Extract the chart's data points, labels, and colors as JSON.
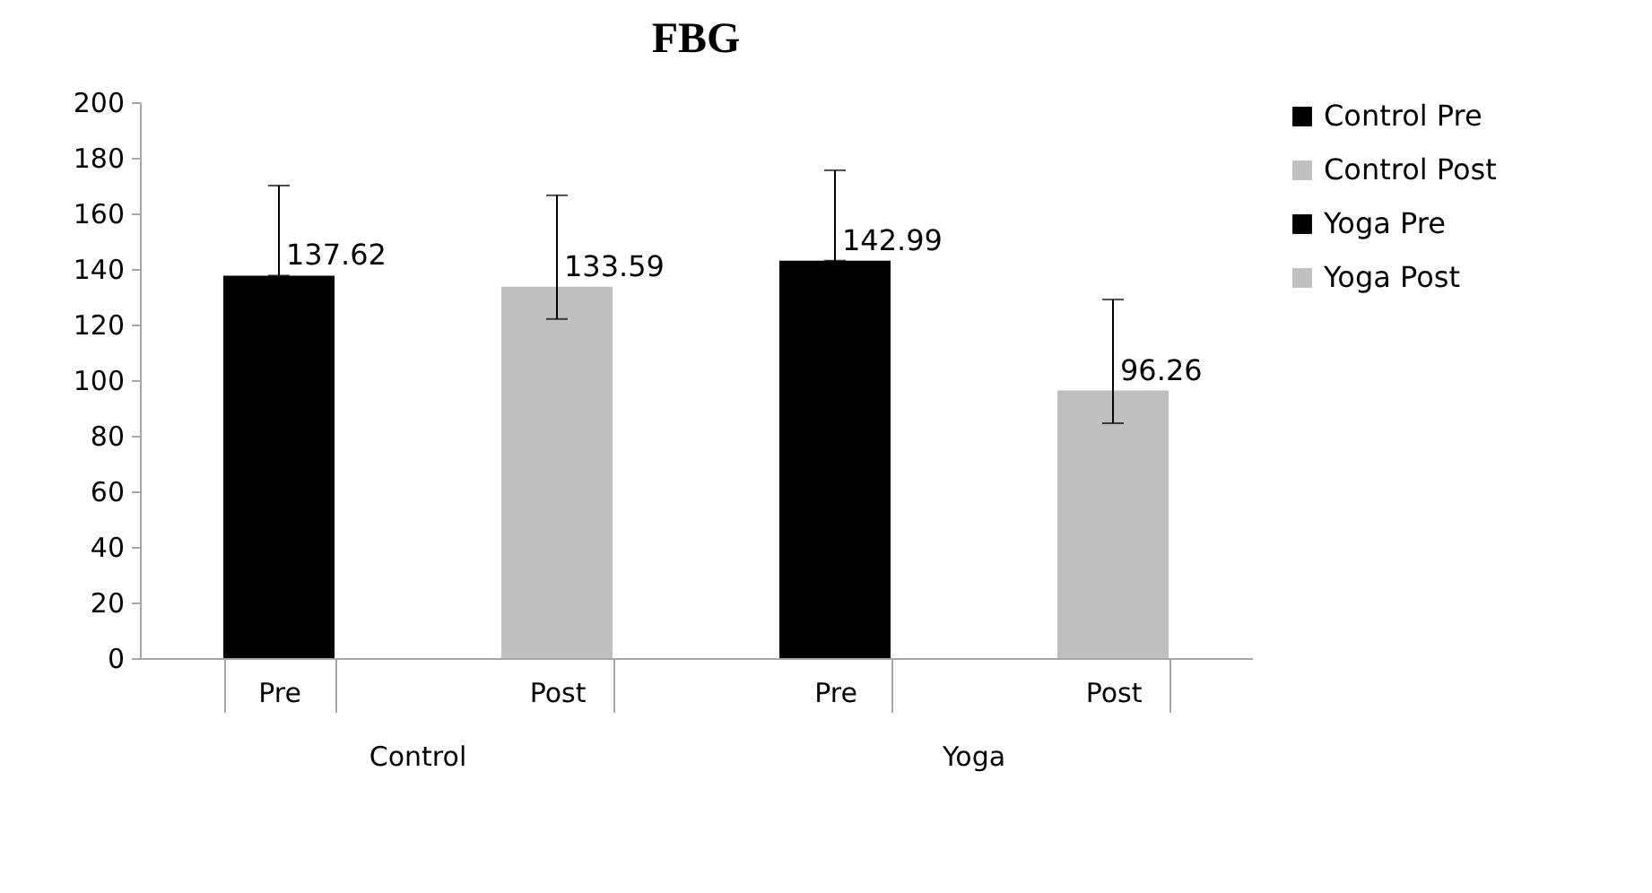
{
  "chart_data": {
    "type": "bar",
    "title": "FBG",
    "categories": [
      "Pre",
      "Post",
      "Pre",
      "Post"
    ],
    "series": [
      {
        "name": "Control Pre",
        "color": "#000000",
        "values": [
          137.62,
          null,
          null,
          null
        ],
        "errors": [
          [
            137.62,
            170
          ],
          null,
          null,
          null
        ]
      },
      {
        "name": "Control Post",
        "color": "#bfbfbf",
        "values": [
          null,
          133.59,
          null,
          null
        ],
        "errors": [
          null,
          [
            122,
            166.5
          ],
          null,
          null
        ]
      },
      {
        "name": "Yoga Pre",
        "color": "#000000",
        "values": [
          null,
          null,
          142.99,
          null
        ],
        "errors": [
          null,
          null,
          [
            142.99,
            175.5
          ],
          null
        ]
      },
      {
        "name": "Yoga Post",
        "color": "#bfbfbf",
        "values": [
          null,
          null,
          null,
          96.26
        ],
        "errors": [
          null,
          null,
          null,
          [
            84.5,
            129
          ]
        ]
      }
    ],
    "ylim": [
      0,
      200
    ],
    "yticks": [
      0,
      20,
      40,
      60,
      80,
      100,
      120,
      140,
      160,
      180,
      200
    ],
    "data_labels": true,
    "legend": "right",
    "grid": false,
    "annotations": [
      "Control",
      "Yoga"
    ]
  }
}
